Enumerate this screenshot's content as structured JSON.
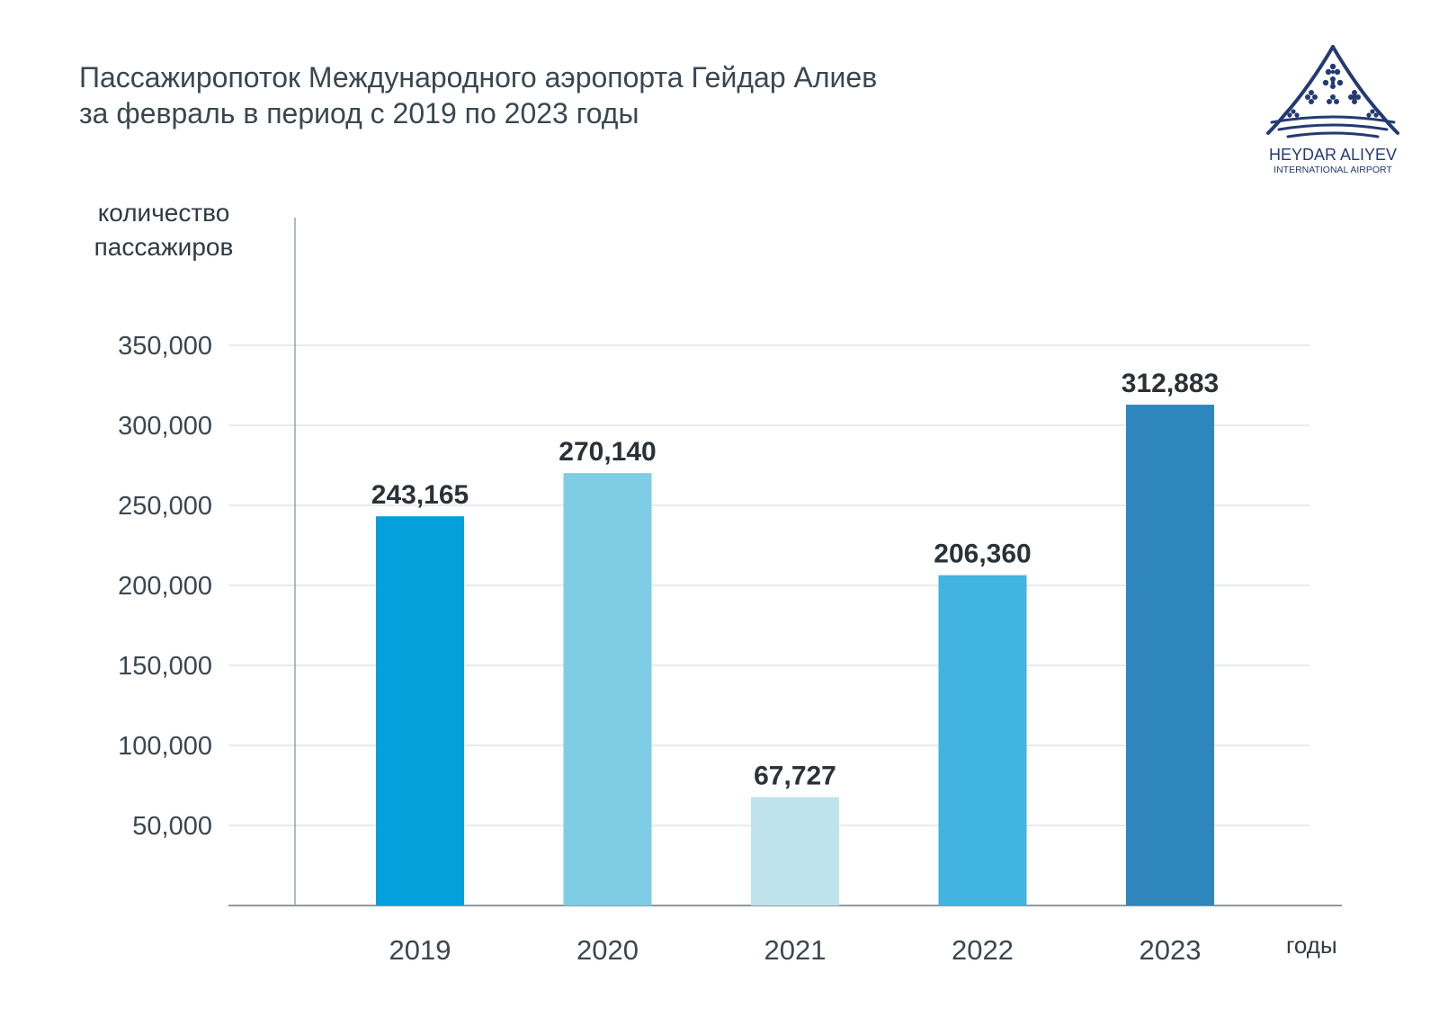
{
  "title_line1": "Пассажиропоток Международного аэропорта Гейдар Алиев",
  "title_line2": "за февраль в период с 2019 по 2023 годы",
  "logo": {
    "icon": "airport-logo-icon",
    "name_line1": "HEYDAR ALIYEV",
    "name_line2": "INTERNATIONAL AIRPORT",
    "color": "#243a73"
  },
  "chart_data": {
    "type": "bar",
    "title": "Пассажиропоток Международного аэропорта Гейдар Алиев за февраль в период с 2019 по 2023 годы",
    "ylabel_line1": "количество",
    "ylabel_line2": "пассажиров",
    "xlabel": "годы",
    "categories": [
      "2019",
      "2020",
      "2021",
      "2022",
      "2023"
    ],
    "values": [
      243165,
      270140,
      67727,
      206360,
      312883
    ],
    "value_labels": [
      "243,165",
      "270,140",
      "67,727",
      "206,360",
      "312,883"
    ],
    "colors": [
      "#04a0dc",
      "#7ecde5",
      "#bfe3ec",
      "#41b4e2",
      "#2e86bd"
    ],
    "yticks": [
      50000,
      100000,
      150000,
      200000,
      250000,
      300000,
      350000
    ],
    "ytick_labels": [
      "50,000",
      "100,000",
      "150,000",
      "200,000",
      "250,000",
      "300,000",
      "350,000"
    ],
    "ylim": [
      0,
      350000
    ],
    "grid": true,
    "legend": false
  }
}
